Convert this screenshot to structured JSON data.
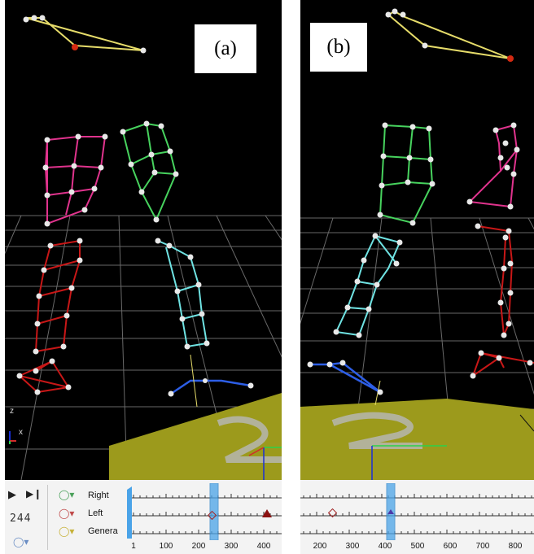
{
  "panels": [
    {
      "label": "(a)",
      "timeline": {
        "timecode": "244",
        "tracks": [
          "Right",
          "Left",
          "Genera"
        ],
        "axis_ticks": [
          "1",
          "100",
          "200",
          "300",
          "400"
        ],
        "playback": {
          "play_icon": "play-icon",
          "step_icon": "step-forward-icon"
        }
      },
      "gizmo": {
        "z": "z",
        "x": "x"
      }
    },
    {
      "label": "(b)",
      "timeline": {
        "axis_ticks": [
          "200",
          "300",
          "400",
          "500",
          "600",
          "700",
          "800"
        ]
      }
    }
  ],
  "colors": {
    "viewport_bg": "#000000",
    "grid": "#8a8a8a",
    "floor": "#9c9a1c",
    "yellow_marker": "#e6dc6a",
    "green_marker": "#47d35e",
    "magenta_marker": "#e0338d",
    "red_marker": "#c81717",
    "cyan_marker": "#6fe3e3",
    "blue_marker": "#2d5ee6",
    "timeline_bg": "#f3f3f3",
    "playhead": "#4aa3e8",
    "key_dark_red": "#8b1010"
  }
}
